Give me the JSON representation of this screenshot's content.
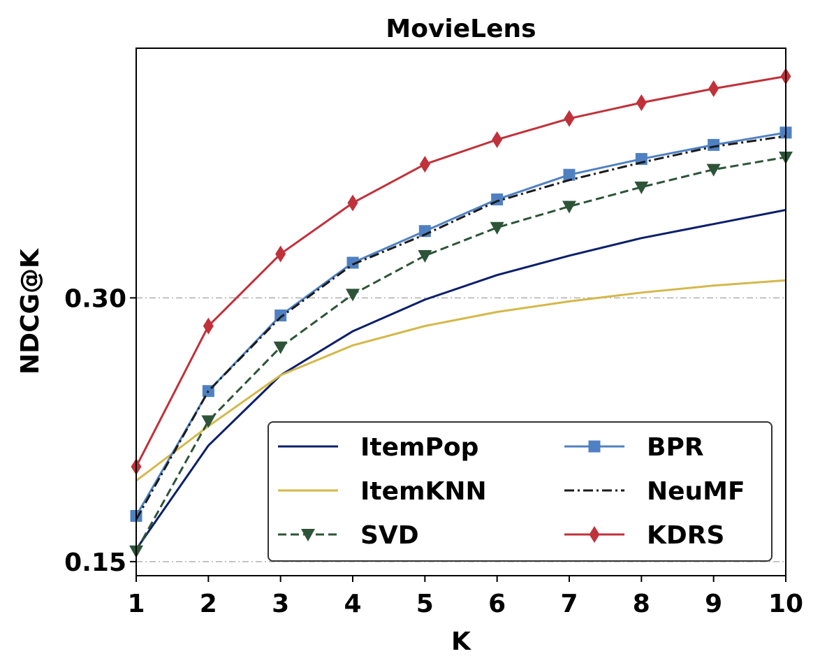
{
  "chart_data": {
    "type": "line",
    "title": "MovieLens",
    "xlabel": "K",
    "ylabel": "NDCG@K",
    "x": [
      1,
      2,
      3,
      4,
      5,
      6,
      7,
      8,
      9,
      10
    ],
    "xlim": [
      1,
      10
    ],
    "ylim": [
      0.142,
      0.442
    ],
    "xticks": [
      1,
      2,
      3,
      4,
      5,
      6,
      7,
      8,
      9,
      10
    ],
    "yticks": [
      0.15,
      0.3
    ],
    "ytick_labels": [
      "0.15",
      "0.30"
    ],
    "grid": "horizontal dash-dot at y ticks",
    "legend": {
      "placement": "lower-right",
      "columns": 2
    },
    "series": [
      {
        "name": "ItemPop",
        "color": "#0a1f6b",
        "linestyle": "solid",
        "marker": "none",
        "values": [
          0.157,
          0.216,
          0.256,
          0.281,
          0.299,
          0.313,
          0.324,
          0.334,
          0.342,
          0.35
        ]
      },
      {
        "name": "ItemKNN",
        "color": "#d4b84a",
        "linestyle": "solid",
        "marker": "none",
        "values": [
          0.196,
          0.227,
          0.256,
          0.273,
          0.284,
          0.292,
          0.298,
          0.303,
          0.307,
          0.31
        ]
      },
      {
        "name": "SVD",
        "color": "#2d5438",
        "linestyle": "dashed",
        "marker": "triangle-down",
        "values": [
          0.156,
          0.23,
          0.272,
          0.302,
          0.324,
          0.34,
          0.352,
          0.363,
          0.373,
          0.38
        ]
      },
      {
        "name": "BPR",
        "color": "#4f81c2",
        "linestyle": "solid",
        "marker": "square",
        "values": [
          0.176,
          0.247,
          0.29,
          0.32,
          0.338,
          0.356,
          0.37,
          0.379,
          0.387,
          0.394
        ]
      },
      {
        "name": "NeuMF",
        "color": "#1a1a1a",
        "linestyle": "dashdot",
        "marker": "none",
        "values": [
          0.174,
          0.247,
          0.289,
          0.319,
          0.336,
          0.355,
          0.367,
          0.377,
          0.386,
          0.392
        ]
      },
      {
        "name": "KDRS",
        "color": "#c0313a",
        "linestyle": "solid",
        "marker": "diamond",
        "values": [
          0.204,
          0.284,
          0.325,
          0.354,
          0.376,
          0.39,
          0.402,
          0.411,
          0.419,
          0.426
        ]
      }
    ]
  }
}
